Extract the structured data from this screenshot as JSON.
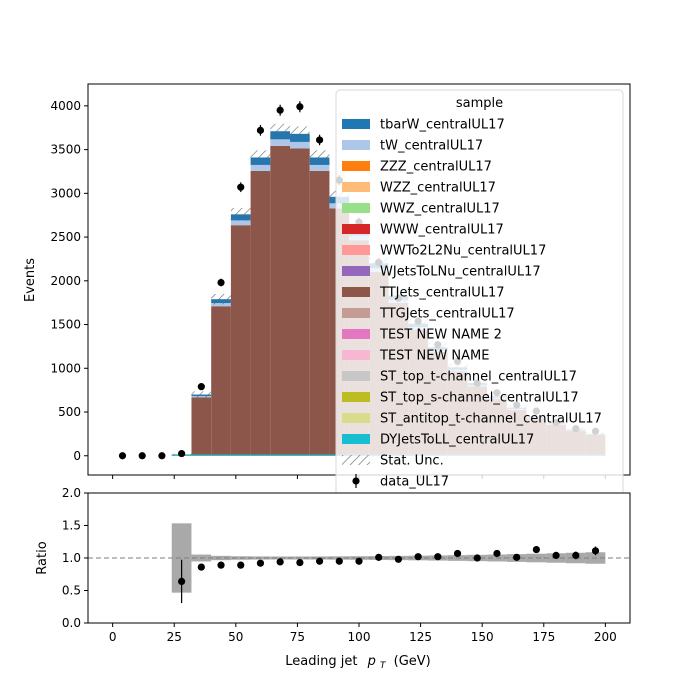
{
  "chart_data": {
    "type": "bar",
    "xlabel_main": "Leading jet",
    "xlabel_sub": "p",
    "xlabel_subscript": "T",
    "xlabel_unit": "(GeV)",
    "ylabel_top": "Events",
    "ylabel_bottom": "Ratio",
    "xlim": [
      -10,
      210
    ],
    "ylim_top": [
      -220,
      4250
    ],
    "ylim_bottom": [
      0,
      2
    ],
    "x_ticks": [
      "0",
      "25",
      "50",
      "75",
      "100",
      "125",
      "150",
      "175",
      "200"
    ],
    "y_ticks_top": [
      "0",
      "500",
      "1000",
      "1500",
      "2000",
      "2500",
      "3000",
      "3500",
      "4000"
    ],
    "y_ticks_bottom": [
      "0.0",
      "0.5",
      "1.0",
      "1.5",
      "2.0"
    ],
    "bin_edges": [
      0,
      8,
      16,
      24,
      32,
      40,
      48,
      56,
      64,
      72,
      80,
      88,
      96,
      104,
      112,
      120,
      128,
      136,
      144,
      152,
      160,
      168,
      176,
      184,
      192,
      200
    ],
    "mc_total": [
      0,
      0,
      0,
      15,
      700,
      1790,
      2760,
      3410,
      3710,
      3680,
      3410,
      2960,
      2580,
      2200,
      1830,
      1510,
      1240,
      1010,
      830,
      680,
      550,
      450,
      370,
      300,
      250
    ],
    "ttjets_fraction": 0.955,
    "tw_fraction": 0.02,
    "tbarw_fraction": 0.025,
    "data_points": {
      "x": [
        4,
        12,
        20,
        28,
        36,
        44,
        52,
        60,
        68,
        76,
        84,
        92,
        100,
        108,
        116,
        124,
        132,
        140,
        148,
        156,
        164,
        172,
        180,
        188,
        196
      ],
      "y": [
        0,
        0,
        0,
        25,
        790,
        1980,
        3070,
        3720,
        3950,
        3990,
        3610,
        3150,
        2670,
        2210,
        1800,
        1540,
        1270,
        1080,
        830,
        720,
        580,
        510,
        380,
        310,
        280
      ],
      "ratio": [
        null,
        null,
        null,
        0.64,
        0.86,
        0.89,
        0.89,
        0.92,
        0.94,
        0.93,
        0.95,
        0.95,
        0.95,
        1.01,
        0.98,
        1.02,
        1.02,
        1.07,
        1.0,
        1.07,
        1.01,
        1.13,
        1.04,
        1.04,
        1.11
      ]
    },
    "legend": {
      "title": "sample",
      "position": "top-right",
      "entries": [
        {
          "label": "tbarW_centralUL17",
          "color": "#1f77b4",
          "kind": "patch"
        },
        {
          "label": "tW_centralUL17",
          "color": "#aec7e8",
          "kind": "patch"
        },
        {
          "label": "ZZZ_centralUL17",
          "color": "#ff7f0e",
          "kind": "patch"
        },
        {
          "label": "WZZ_centralUL17",
          "color": "#ffbb78",
          "kind": "patch"
        },
        {
          "label": "WWZ_centralUL17",
          "color": "#98df8a",
          "kind": "patch"
        },
        {
          "label": "WWW_centralUL17",
          "color": "#d62728",
          "kind": "patch"
        },
        {
          "label": "WWTo2L2Nu_centralUL17",
          "color": "#ff9896",
          "kind": "patch"
        },
        {
          "label": "WJetsToLNu_centralUL17",
          "color": "#9467bd",
          "kind": "patch"
        },
        {
          "label": "TTJets_centralUL17",
          "color": "#8c564b",
          "kind": "patch"
        },
        {
          "label": "TTGJets_centralUL17",
          "color": "#c49c94",
          "kind": "patch"
        },
        {
          "label": "TEST NEW NAME 2",
          "color": "#e377c2",
          "kind": "patch"
        },
        {
          "label": "TEST NEW NAME",
          "color": "#f7b6d2",
          "kind": "patch"
        },
        {
          "label": "ST_top_t-channel_centralUL17",
          "color": "#c7c7c7",
          "kind": "patch"
        },
        {
          "label": "ST_top_s-channel_centralUL17",
          "color": "#bcbd22",
          "kind": "patch"
        },
        {
          "label": "ST_antitop_t-channel_centralUL17",
          "color": "#dbdb8d",
          "kind": "patch"
        },
        {
          "label": "DYJetsToLL_centralUL17",
          "color": "#17becf",
          "kind": "patch"
        },
        {
          "label": "Stat. Unc.",
          "color": "#888888",
          "kind": "hatch"
        },
        {
          "label": "data_UL17",
          "color": "#000000",
          "kind": "point"
        }
      ]
    }
  }
}
